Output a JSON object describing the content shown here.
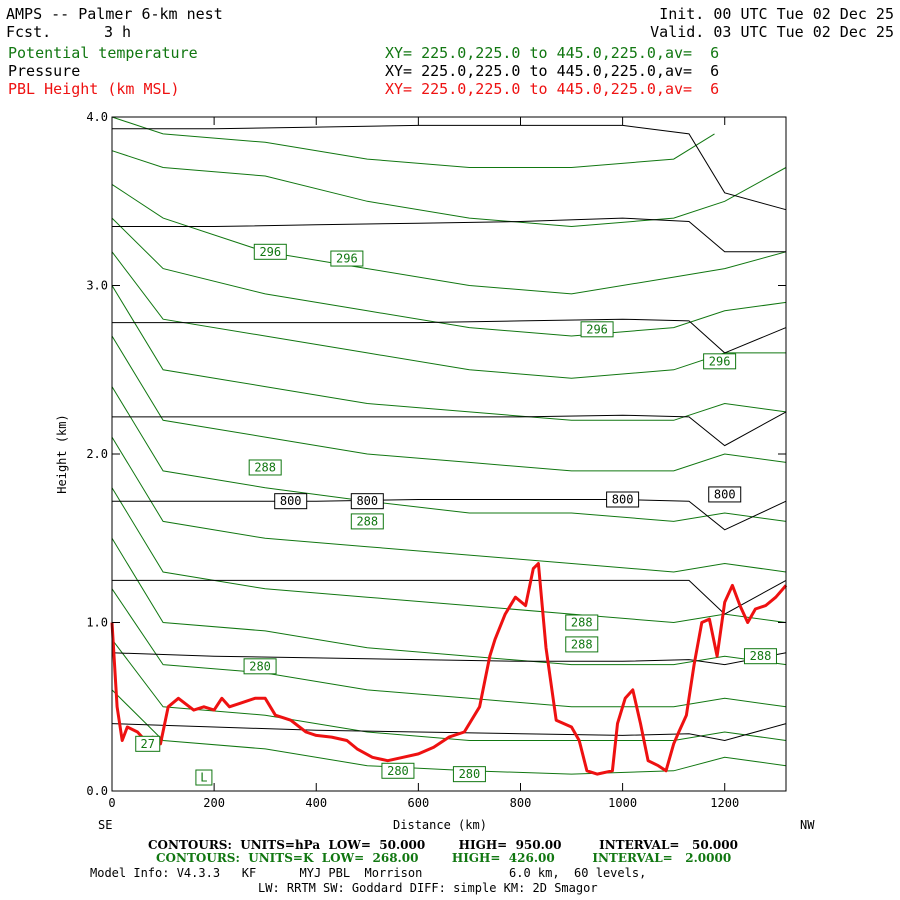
{
  "header": {
    "title_left": "AMPS -- Palmer 6-km nest",
    "fcst_label": "Fcst.",
    "fcst_value": "3 h",
    "init": "Init. 00 UTC Tue 02 Dec 25",
    "valid": "Valid. 03 UTC Tue 02 Dec 25",
    "fields": [
      {
        "name": "Potential temperature",
        "xy": "XY= 225.0,225.0 to 445.0,225.0,av=  6",
        "color": "#117711"
      },
      {
        "name": "Pressure",
        "xy": "XY= 225.0,225.0 to 445.0,225.0,av=  6",
        "color": "#000000"
      },
      {
        "name": "PBL Height (km MSL)",
        "xy": "XY= 225.0,225.0 to 445.0,225.0,av=  6",
        "color": "#ee1111"
      }
    ]
  },
  "chart_data": {
    "type": "line",
    "xlabel": "Distance (km)",
    "ylabel": "Height (km)",
    "xlim": [
      0,
      1320
    ],
    "ylim": [
      0,
      4.0
    ],
    "x_ticks": [
      0,
      200,
      400,
      600,
      800,
      1000,
      1200
    ],
    "y_ticks": [
      "0.0",
      "1.0",
      "2.0",
      "3.0",
      "4.0"
    ],
    "left_end_label": "SE",
    "right_end_label": "NW",
    "pbl_height": {
      "name": "PBL Height (km MSL)",
      "color": "#ee1111",
      "x": [
        0,
        10,
        20,
        30,
        50,
        65,
        80,
        95,
        110,
        130,
        160,
        180,
        200,
        215,
        230,
        250,
        280,
        300,
        320,
        350,
        380,
        400,
        430,
        460,
        480,
        510,
        540,
        570,
        600,
        630,
        660,
        690,
        720,
        740,
        750,
        770,
        790,
        810,
        825,
        835,
        850,
        870,
        900,
        915,
        930,
        950,
        980,
        990,
        1005,
        1020,
        1035,
        1050,
        1070,
        1085,
        1100,
        1110,
        1125,
        1140,
        1155,
        1170,
        1185,
        1200,
        1215,
        1230,
        1245,
        1260,
        1280,
        1300,
        1320
      ],
      "y": [
        1.0,
        0.5,
        0.3,
        0.38,
        0.35,
        0.3,
        0.32,
        0.28,
        0.5,
        0.55,
        0.48,
        0.5,
        0.48,
        0.55,
        0.5,
        0.52,
        0.55,
        0.55,
        0.45,
        0.42,
        0.35,
        0.33,
        0.32,
        0.3,
        0.25,
        0.2,
        0.18,
        0.2,
        0.22,
        0.26,
        0.32,
        0.35,
        0.5,
        0.8,
        0.9,
        1.05,
        1.15,
        1.1,
        1.32,
        1.35,
        0.85,
        0.42,
        0.38,
        0.3,
        0.12,
        0.1,
        0.12,
        0.4,
        0.55,
        0.6,
        0.4,
        0.18,
        0.15,
        0.12,
        0.28,
        0.35,
        0.45,
        0.75,
        1.0,
        1.02,
        0.8,
        1.12,
        1.22,
        1.1,
        1.0,
        1.08,
        1.1,
        1.15,
        1.22
      ]
    },
    "pressure_isobars": {
      "name": "Pressure",
      "color": "#000000",
      "units": "hPa",
      "levels": [
        {
          "y": [
            3.93,
            3.93,
            3.94,
            3.95,
            3.95,
            3.95,
            3.9,
            3.55,
            3.45
          ],
          "label": null
        },
        {
          "y": [
            3.35,
            3.35,
            3.36,
            3.37,
            3.38,
            3.4,
            3.38,
            3.2,
            3.2
          ],
          "label": null
        },
        {
          "y": [
            2.78,
            2.78,
            2.78,
            2.78,
            2.79,
            2.8,
            2.79,
            2.6,
            2.75
          ],
          "label": null
        },
        {
          "y": [
            2.22,
            2.22,
            2.22,
            2.22,
            2.22,
            2.23,
            2.22,
            2.05,
            2.25
          ],
          "label": null
        },
        {
          "y": [
            1.72,
            1.72,
            1.72,
            1.73,
            1.73,
            1.73,
            1.72,
            1.55,
            1.72
          ],
          "label": "800"
        },
        {
          "y": [
            1.25,
            1.25,
            1.25,
            1.25,
            1.25,
            1.25,
            1.25,
            1.05,
            1.25
          ],
          "label": null
        },
        {
          "y": [
            0.82,
            0.8,
            0.79,
            0.78,
            0.77,
            0.77,
            0.78,
            0.75,
            0.82
          ],
          "label": null
        },
        {
          "y": [
            0.4,
            0.38,
            0.36,
            0.35,
            0.34,
            0.33,
            0.34,
            0.3,
            0.4
          ],
          "label": null
        }
      ],
      "x": [
        0,
        200,
        400,
        600,
        800,
        1000,
        1130,
        1200,
        1320
      ],
      "labels": [
        {
          "text": "800",
          "x": 350,
          "y": 1.72
        },
        {
          "text": "800",
          "x": 500,
          "y": 1.72
        },
        {
          "text": "800",
          "x": 1000,
          "y": 1.73
        },
        {
          "text": "800",
          "x": 1200,
          "y": 1.76
        }
      ]
    },
    "theta_isentropes": {
      "name": "Potential temperature",
      "color": "#117711",
      "units": "K",
      "lines": [
        {
          "x": [
            0,
            100,
            300,
            500,
            700,
            900,
            1100,
            1180
          ],
          "y": [
            4.0,
            3.9,
            3.85,
            3.75,
            3.7,
            3.7,
            3.75,
            3.9
          ]
        },
        {
          "x": [
            0,
            100,
            300,
            500,
            700,
            900,
            1100,
            1200,
            1320
          ],
          "y": [
            3.8,
            3.7,
            3.65,
            3.5,
            3.4,
            3.35,
            3.4,
            3.5,
            3.7
          ]
        },
        {
          "x": [
            0,
            100,
            300,
            500,
            700,
            900,
            1100,
            1200,
            1320
          ],
          "y": [
            3.6,
            3.4,
            3.2,
            3.1,
            3.0,
            2.95,
            3.05,
            3.1,
            3.2
          ]
        },
        {
          "x": [
            0,
            100,
            300,
            500,
            700,
            900,
            1100,
            1200,
            1320
          ],
          "y": [
            3.4,
            3.1,
            2.95,
            2.85,
            2.75,
            2.7,
            2.75,
            2.85,
            2.9
          ]
        },
        {
          "x": [
            0,
            100,
            300,
            500,
            700,
            900,
            1100,
            1200,
            1320
          ],
          "y": [
            3.2,
            2.8,
            2.7,
            2.6,
            2.5,
            2.45,
            2.5,
            2.6,
            2.6
          ]
        },
        {
          "x": [
            0,
            100,
            300,
            500,
            700,
            900,
            1100,
            1200,
            1320
          ],
          "y": [
            3.0,
            2.5,
            2.4,
            2.3,
            2.25,
            2.2,
            2.2,
            2.3,
            2.25
          ]
        },
        {
          "x": [
            0,
            100,
            300,
            500,
            700,
            900,
            1100,
            1200,
            1320
          ],
          "y": [
            2.7,
            2.2,
            2.1,
            2.0,
            1.95,
            1.9,
            1.9,
            2.0,
            1.95
          ]
        },
        {
          "x": [
            0,
            100,
            300,
            500,
            700,
            900,
            1100,
            1200,
            1320
          ],
          "y": [
            2.4,
            1.9,
            1.8,
            1.72,
            1.65,
            1.65,
            1.6,
            1.65,
            1.6
          ]
        },
        {
          "x": [
            0,
            100,
            300,
            500,
            700,
            900,
            1100,
            1200,
            1320
          ],
          "y": [
            2.1,
            1.6,
            1.5,
            1.45,
            1.4,
            1.35,
            1.3,
            1.35,
            1.3
          ]
        },
        {
          "x": [
            0,
            100,
            300,
            500,
            700,
            900,
            1100,
            1200,
            1320
          ],
          "y": [
            1.8,
            1.3,
            1.2,
            1.15,
            1.1,
            1.05,
            1.0,
            1.05,
            1.0
          ]
        },
        {
          "x": [
            0,
            100,
            300,
            500,
            700,
            900,
            1100,
            1200,
            1320
          ],
          "y": [
            1.5,
            1.0,
            0.95,
            0.85,
            0.8,
            0.75,
            0.75,
            0.8,
            0.75
          ]
        },
        {
          "x": [
            0,
            100,
            300,
            500,
            700,
            900,
            1100,
            1200,
            1320
          ],
          "y": [
            1.2,
            0.75,
            0.7,
            0.6,
            0.55,
            0.5,
            0.5,
            0.55,
            0.5
          ]
        },
        {
          "x": [
            0,
            100,
            300,
            500,
            700,
            900,
            1100,
            1200,
            1320
          ],
          "y": [
            0.9,
            0.5,
            0.45,
            0.35,
            0.3,
            0.3,
            0.3,
            0.35,
            0.3
          ]
        },
        {
          "x": [
            0,
            100,
            300,
            500,
            700,
            900,
            1100,
            1200,
            1320
          ],
          "y": [
            0.6,
            0.3,
            0.25,
            0.15,
            0.12,
            0.1,
            0.12,
            0.2,
            0.15
          ]
        }
      ],
      "labels": [
        {
          "text": "296",
          "x": 310,
          "y": 3.2
        },
        {
          "text": "296",
          "x": 460,
          "y": 3.16
        },
        {
          "text": "296",
          "x": 950,
          "y": 2.74
        },
        {
          "text": "296",
          "x": 1190,
          "y": 2.55
        },
        {
          "text": "288",
          "x": 300,
          "y": 1.92
        },
        {
          "text": "288",
          "x": 500,
          "y": 1.6
        },
        {
          "text": "288",
          "x": 920,
          "y": 1.0
        },
        {
          "text": "288",
          "x": 920,
          "y": 0.87
        },
        {
          "text": "288",
          "x": 1270,
          "y": 0.8
        },
        {
          "text": "280",
          "x": 290,
          "y": 0.74
        },
        {
          "text": "280",
          "x": 560,
          "y": 0.12
        },
        {
          "text": "280",
          "x": 700,
          "y": 0.1
        },
        {
          "text": "27",
          "x": 70,
          "y": 0.28
        }
      ]
    },
    "low_marker": {
      "text": "L",
      "x": 180,
      "y": 0.08
    }
  },
  "footer": {
    "line1": "CONTOURS:  UNITS=hPa  LOW=  50.000        HIGH=  950.00         INTERVAL=   50.000",
    "line2": "CONTOURS:  UNITS=K  LOW=  268.00        HIGH=  426.00         INTERVAL=   2.0000",
    "line3": "Model Info: V4.3.3   KF      MYJ PBL  Morrison            6.0 km,  60 levels,",
    "line4": "LW: RRTM SW: Goddard DIFF: simple KM: 2D Smagor"
  }
}
